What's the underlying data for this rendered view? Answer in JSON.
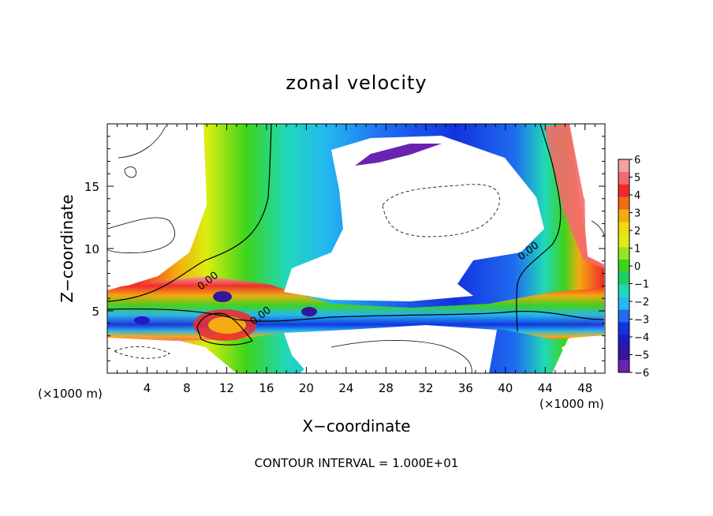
{
  "chart_data": {
    "type": "heatmap",
    "title": "zonal velocity",
    "xlabel": "X−coordinate",
    "ylabel": "Z−coordinate",
    "x_unit_left": "(×1000 m)",
    "x_unit_right": "(×1000 m)",
    "footer": "CONTOUR INTERVAL = 1.000E+01",
    "xlim": [
      0,
      50
    ],
    "ylim": [
      0,
      20
    ],
    "x_ticks": [
      4,
      8,
      12,
      16,
      20,
      24,
      28,
      32,
      36,
      40,
      44,
      48
    ],
    "y_ticks": [
      5,
      10,
      15
    ],
    "contour_labels": [
      {
        "text": "0.00",
        "x": 10.3,
        "y": 7.2
      },
      {
        "text": "0.00",
        "x": 15.6,
        "y": 4.4
      },
      {
        "text": "0.00",
        "x": 42.5,
        "y": 9.6
      }
    ],
    "colorbar": {
      "levels": [
        "6",
        "5",
        "4",
        "3",
        "2",
        "1",
        "0",
        "−1",
        "−2",
        "−3",
        "−4",
        "−5",
        "−6"
      ],
      "colors": [
        "#f4a0a6",
        "#f46a6e",
        "#f02a2a",
        "#f06c14",
        "#f4aa10",
        "#f2d818",
        "#dcee10",
        "#9ae428",
        "#3cd41c",
        "#20cc68",
        "#20d8b8",
        "#24b8f0",
        "#1f6cf0",
        "#1232e0",
        "#2418c4",
        "#34169c",
        "#6a22b0"
      ]
    },
    "grid": false
  }
}
